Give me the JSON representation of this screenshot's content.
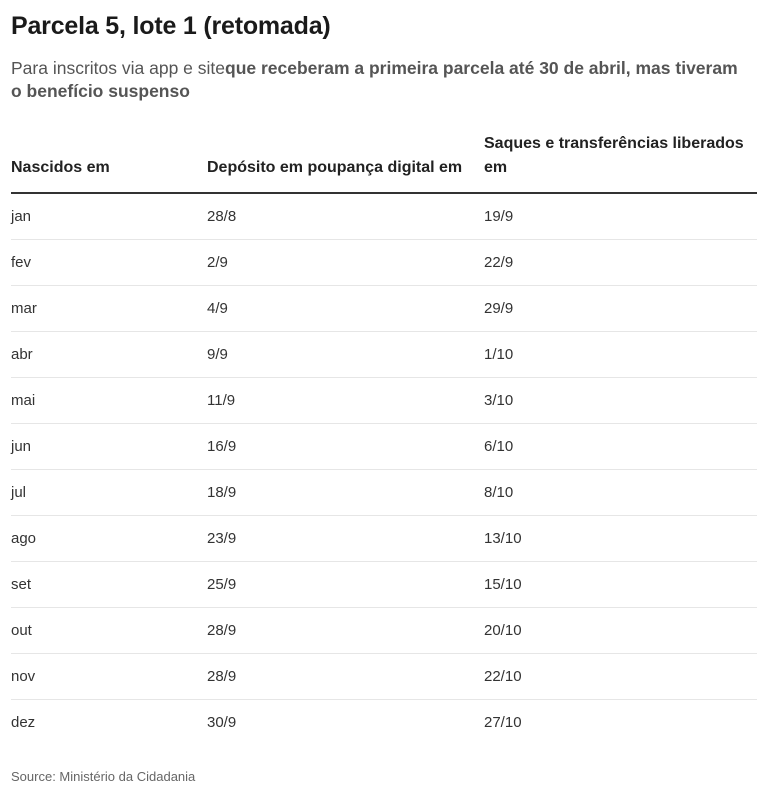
{
  "title": "Parcela 5, lote 1 (retomada)",
  "subtitle": {
    "normal": "Para inscritos via app e site",
    "bold": "que receberam a primeira parcela até 30 de abril, mas tiveram o benefício suspenso"
  },
  "table": {
    "headers": [
      "Nascidos em",
      "Depósito em poupança digital em",
      "Saques e transferências liberados em"
    ],
    "rows": [
      [
        "jan",
        "28/8",
        "19/9"
      ],
      [
        "fev",
        "2/9",
        "22/9"
      ],
      [
        "mar",
        "4/9",
        "29/9"
      ],
      [
        "abr",
        "9/9",
        "1/10"
      ],
      [
        "mai",
        "11/9",
        "3/10"
      ],
      [
        "jun",
        "16/9",
        "6/10"
      ],
      [
        "jul",
        "18/9",
        "8/10"
      ],
      [
        "ago",
        "23/9",
        "13/10"
      ],
      [
        "set",
        "25/9",
        "15/10"
      ],
      [
        "out",
        "28/9",
        "20/10"
      ],
      [
        "nov",
        "28/9",
        "22/10"
      ],
      [
        "dez",
        "30/9",
        "27/10"
      ]
    ]
  },
  "source": "Source: Ministério da Cidadania"
}
